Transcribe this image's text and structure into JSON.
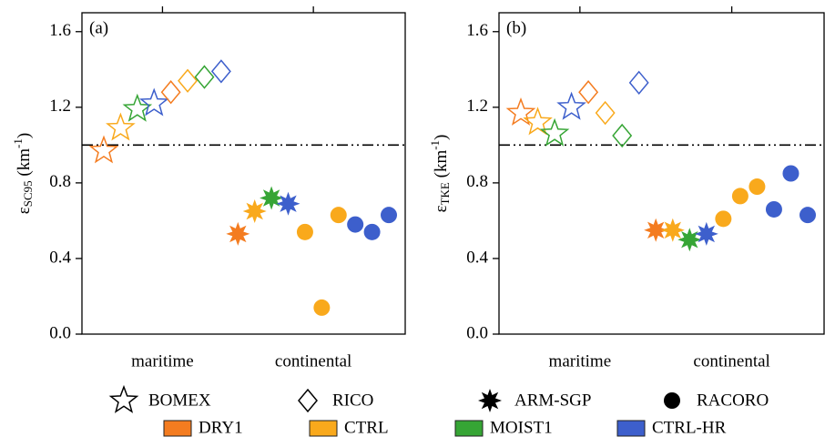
{
  "chart_data": {
    "type": "scatter",
    "categories": [
      "maritime",
      "continental"
    ],
    "cases": [
      {
        "name": "BOMEX",
        "marker": "star-open",
        "category": 0
      },
      {
        "name": "RICO",
        "marker": "diamond-open",
        "category": 0
      },
      {
        "name": "ARM-SGP",
        "marker": "star8-filled",
        "category": 1
      },
      {
        "name": "RACORO",
        "marker": "circle-filled",
        "category": 1
      }
    ],
    "experiments": [
      {
        "name": "DRY1",
        "color": "#f47c20"
      },
      {
        "name": "CTRL",
        "color": "#f9a91c"
      },
      {
        "name": "MOIST1",
        "color": "#36a535"
      },
      {
        "name": "CTRL-HR",
        "color": "#3d5fcc"
      }
    ],
    "ylim": [
      0,
      1.7
    ],
    "yticks": [
      {
        "value": 0,
        "label": "0.0"
      },
      0.4,
      0.8,
      1.2,
      1.6
    ],
    "reference_line": 1,
    "panels": [
      {
        "label": "(a)",
        "ylabel": [
          "ε",
          "SC95",
          " (km",
          "-1",
          ")"
        ],
        "series": [
          {
            "values": [
              0.97,
              1.09,
              1.19,
              1.22
            ],
            "experiment": [
              0,
              1,
              2,
              3
            ]
          },
          {
            "values": [
              1.28,
              1.34,
              1.36,
              1.39
            ],
            "experiment": [
              0,
              1,
              2,
              3
            ]
          },
          {
            "values": [
              0.53,
              0.65,
              0.72,
              0.69
            ],
            "experiment": [
              0,
              1,
              2,
              3
            ]
          },
          {
            "values": [
              0.54,
              0.14,
              0.63,
              0.58,
              0.54,
              0.63
            ],
            "experiment": [
              1,
              1,
              1,
              3,
              3,
              3
            ]
          }
        ]
      },
      {
        "label": "(b)",
        "ylabel": [
          "ε",
          "TKE",
          " (km",
          "-1",
          ")"
        ],
        "series": [
          {
            "values": [
              1.17,
              1.12,
              1.06,
              1.2
            ],
            "experiment": [
              0,
              1,
              2,
              3
            ]
          },
          {
            "values": [
              1.28,
              1.17,
              1.05,
              1.33
            ],
            "experiment": [
              0,
              1,
              2,
              3
            ]
          },
          {
            "values": [
              0.55,
              0.55,
              0.5,
              0.53
            ],
            "experiment": [
              0,
              1,
              2,
              3
            ]
          },
          {
            "values": [
              0.61,
              0.73,
              0.78,
              0.66,
              0.85,
              0.63
            ],
            "experiment": [
              1,
              1,
              1,
              3,
              3,
              3
            ]
          }
        ]
      }
    ]
  }
}
